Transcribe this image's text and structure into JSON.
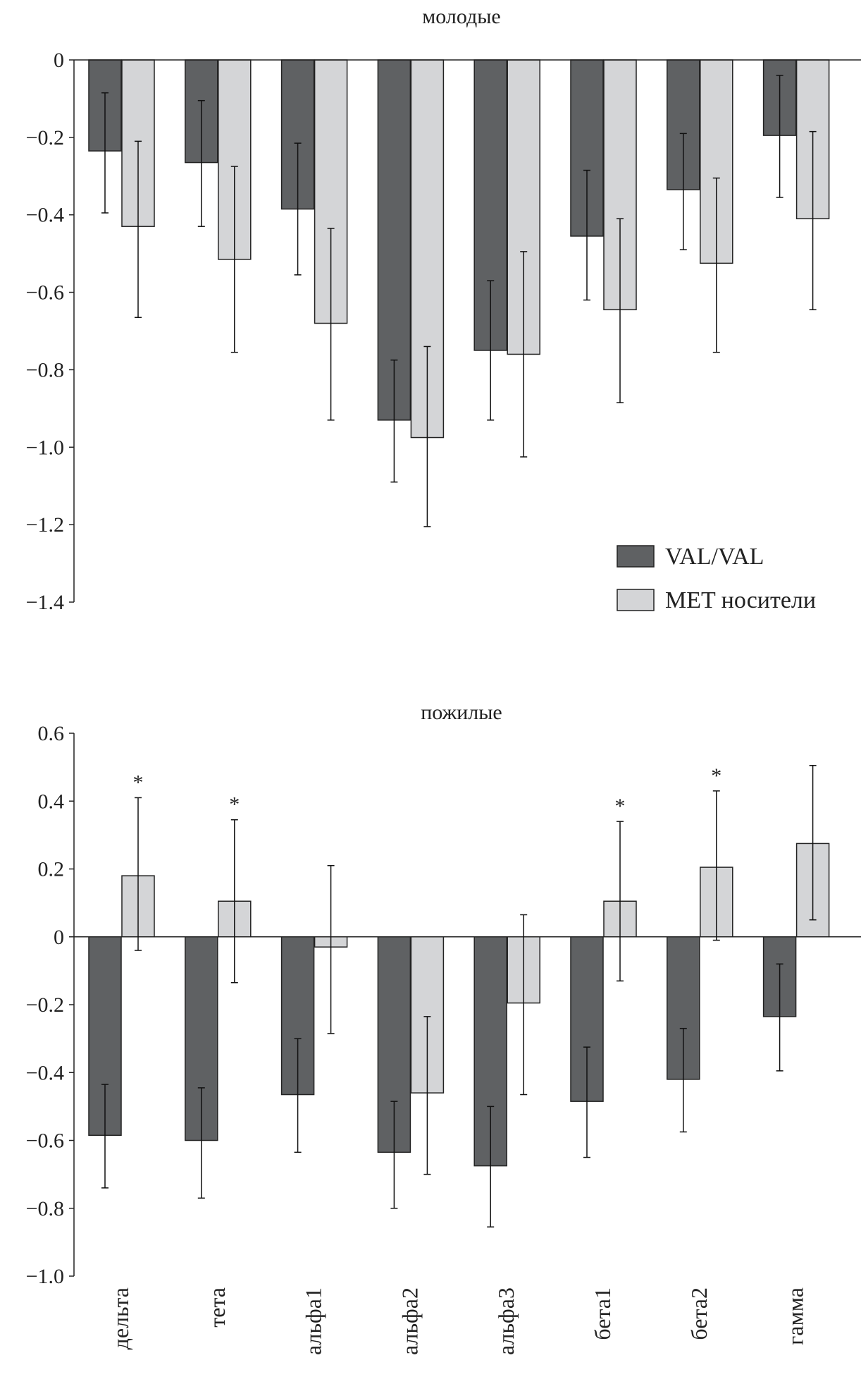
{
  "chart_data": [
    {
      "type": "bar",
      "title": "молодые",
      "categories": [
        "дельта",
        "тета",
        "альфа1",
        "альфа2",
        "альфа3",
        "бета1",
        "бета2",
        "гамма"
      ],
      "ylim": [
        -1.4,
        0
      ],
      "yticks": [
        0,
        -0.2,
        -0.4,
        -0.6,
        -0.8,
        -1.0,
        -1.2,
        -1.4
      ],
      "ytick_labels": [
        "0",
        "−0.2",
        "−0.4",
        "−0.6",
        "−0.8",
        "−1.0",
        "−1.2",
        "−1.4"
      ],
      "legend": [
        "VAL/VAL",
        "MET носители"
      ],
      "legend_position": "bottom-right",
      "series": [
        {
          "name": "VAL/VAL",
          "color": "#5f6163",
          "values": [
            -0.235,
            -0.265,
            -0.385,
            -0.93,
            -0.75,
            -0.455,
            -0.335,
            -0.195
          ],
          "err_high": [
            -0.085,
            -0.105,
            -0.215,
            -0.775,
            -0.57,
            -0.285,
            -0.19,
            -0.04
          ],
          "err_low": [
            -0.395,
            -0.43,
            -0.555,
            -1.09,
            -0.93,
            -0.62,
            -0.49,
            -0.355
          ]
        },
        {
          "name": "MET носители",
          "color": "#d4d5d7",
          "values": [
            -0.43,
            -0.515,
            -0.68,
            -0.975,
            -0.76,
            -0.645,
            -0.525,
            -0.41
          ],
          "err_high": [
            -0.21,
            -0.275,
            -0.435,
            -0.74,
            -0.495,
            -0.41,
            -0.305,
            -0.185
          ],
          "err_low": [
            -0.665,
            -0.755,
            -0.93,
            -1.205,
            -1.025,
            -0.885,
            -0.755,
            -0.645
          ]
        }
      ],
      "annotations": []
    },
    {
      "type": "bar",
      "title": "пожилые",
      "categories": [
        "дельта",
        "тета",
        "альфа1",
        "альфа2",
        "альфа3",
        "бета1",
        "бета2",
        "гамма"
      ],
      "ylim": [
        -1.0,
        0.6
      ],
      "yticks": [
        0.6,
        0.4,
        0.2,
        0,
        -0.2,
        -0.4,
        -0.6,
        -0.8,
        -1.0
      ],
      "ytick_labels": [
        "0.6",
        "0.4",
        "0.2",
        "0",
        "−0.2",
        "−0.4",
        "−0.6",
        "−0.8",
        "−1.0"
      ],
      "series": [
        {
          "name": "VAL/VAL",
          "color": "#5f6163",
          "values": [
            -0.585,
            -0.6,
            -0.465,
            -0.635,
            -0.675,
            -0.485,
            -0.42,
            -0.235
          ],
          "err_high": [
            -0.435,
            -0.445,
            -0.3,
            -0.485,
            -0.5,
            -0.325,
            -0.27,
            -0.08
          ],
          "err_low": [
            -0.74,
            -0.77,
            -0.635,
            -0.8,
            -0.855,
            -0.65,
            -0.575,
            -0.395
          ]
        },
        {
          "name": "MET носители",
          "color": "#d4d5d7",
          "values": [
            0.18,
            0.105,
            -0.03,
            -0.46,
            -0.195,
            0.105,
            0.205,
            0.275
          ],
          "err_high": [
            0.41,
            0.345,
            0.21,
            -0.235,
            0.065,
            0.34,
            0.43,
            0.505
          ],
          "err_low": [
            -0.04,
            -0.135,
            -0.285,
            -0.7,
            -0.465,
            -0.13,
            -0.01,
            0.05
          ]
        }
      ],
      "significance_marker": "*",
      "significant_categories": [
        "дельта",
        "тета",
        "бета1",
        "бета2"
      ]
    }
  ]
}
